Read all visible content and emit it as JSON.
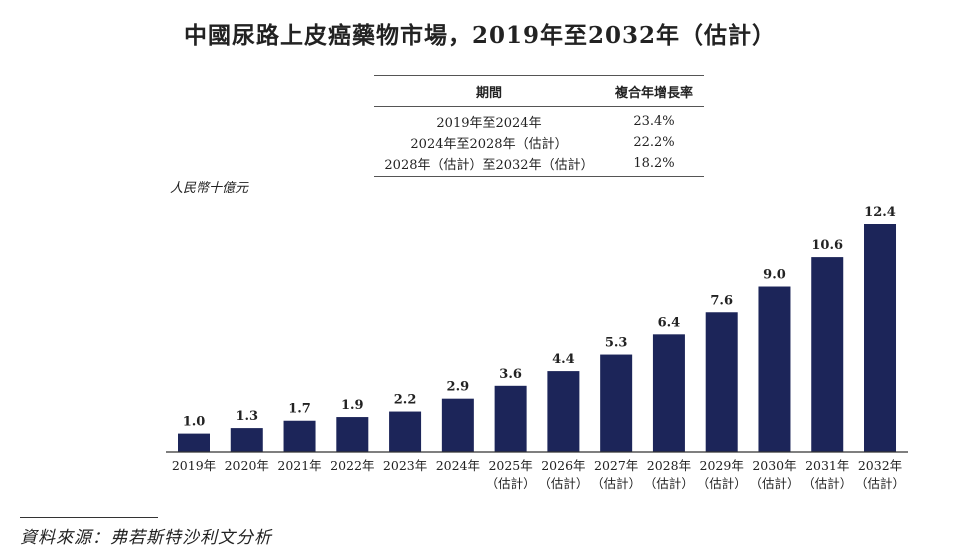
{
  "chart_data": {
    "type": "bar",
    "title": "中國尿路上皮癌藥物市場，2019年至2032年（估計）",
    "ylabel": "人民幣十億元",
    "categories": [
      [
        "2019年",
        ""
      ],
      [
        "2020年",
        ""
      ],
      [
        "2021年",
        ""
      ],
      [
        "2022年",
        ""
      ],
      [
        "2023年",
        ""
      ],
      [
        "2024年",
        ""
      ],
      [
        "2025年",
        "（估計）"
      ],
      [
        "2026年",
        "（估計）"
      ],
      [
        "2027年",
        "（估計）"
      ],
      [
        "2028年",
        "（估計）"
      ],
      [
        "2029年",
        "（估計）"
      ],
      [
        "2030年",
        "（估計）"
      ],
      [
        "2031年",
        "（估計）"
      ],
      [
        "2032年",
        "（估計）"
      ]
    ],
    "values": [
      1.0,
      1.3,
      1.7,
      1.9,
      2.2,
      2.9,
      3.6,
      4.4,
      5.3,
      6.4,
      7.6,
      9.0,
      10.6,
      12.4
    ],
    "data_labels": [
      "1.0",
      "1.3",
      "1.7",
      "1.9",
      "2.2",
      "2.9",
      "3.6",
      "4.4",
      "5.3",
      "6.4",
      "7.6",
      "9.0",
      "10.6",
      "12.4"
    ],
    "ylim": [
      0,
      12.4
    ],
    "grid": false,
    "bar_color": "#1c2559"
  },
  "cagr_table": {
    "headers": [
      "期間",
      "複合年增長率"
    ],
    "rows": [
      [
        "2019年至2024年",
        "23.4%"
      ],
      [
        "2024年至2028年（估計）",
        "22.2%"
      ],
      [
        "2028年（估計）至2032年（估計）",
        "18.2%"
      ]
    ]
  },
  "source": "資料來源：弗若斯特沙利文分析"
}
